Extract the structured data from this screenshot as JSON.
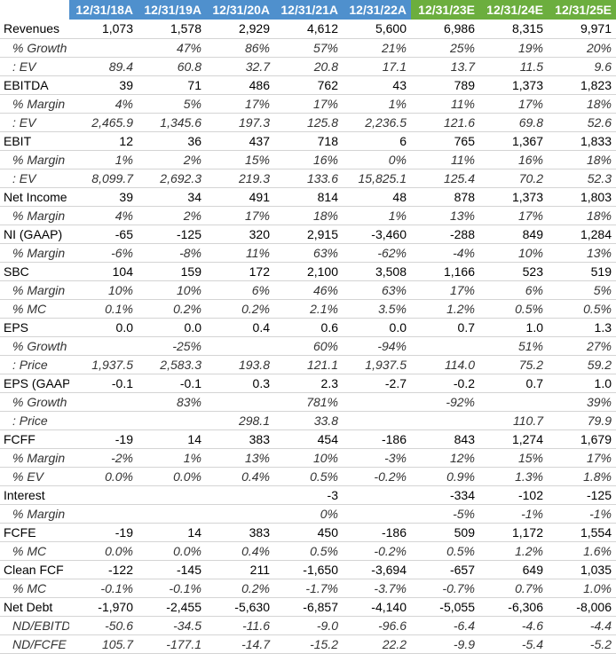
{
  "headers": [
    {
      "text": "12/31/18A",
      "kind": "actual"
    },
    {
      "text": "12/31/19A",
      "kind": "actual"
    },
    {
      "text": "12/31/20A",
      "kind": "actual"
    },
    {
      "text": "12/31/21A",
      "kind": "actual"
    },
    {
      "text": "12/31/22A",
      "kind": "actual"
    },
    {
      "text": "12/31/23E",
      "kind": "est"
    },
    {
      "text": "12/31/24E",
      "kind": "est"
    },
    {
      "text": "12/31/25E",
      "kind": "est"
    }
  ],
  "rows": [
    {
      "label": "Revenues",
      "sub": false,
      "values": [
        "1,073",
        "1,578",
        "2,929",
        "4,612",
        "5,600",
        "6,986",
        "8,315",
        "9,971"
      ]
    },
    {
      "label": "% Growth",
      "sub": true,
      "values": [
        "",
        "47%",
        "86%",
        "57%",
        "21%",
        "25%",
        "19%",
        "20%"
      ]
    },
    {
      "label": ": EV",
      "sub": true,
      "values": [
        "89.4",
        "60.8",
        "32.7",
        "20.8",
        "17.1",
        "13.7",
        "11.5",
        "9.6"
      ]
    },
    {
      "label": "EBITDA",
      "sub": false,
      "values": [
        "39",
        "71",
        "486",
        "762",
        "43",
        "789",
        "1,373",
        "1,823"
      ]
    },
    {
      "label": "% Margin",
      "sub": true,
      "values": [
        "4%",
        "5%",
        "17%",
        "17%",
        "1%",
        "11%",
        "17%",
        "18%"
      ]
    },
    {
      "label": ": EV",
      "sub": true,
      "values": [
        "2,465.9",
        "1,345.6",
        "197.3",
        "125.8",
        "2,236.5",
        "121.6",
        "69.8",
        "52.6"
      ]
    },
    {
      "label": "EBIT",
      "sub": false,
      "values": [
        "12",
        "36",
        "437",
        "718",
        "6",
        "765",
        "1,367",
        "1,833"
      ]
    },
    {
      "label": "% Margin",
      "sub": true,
      "values": [
        "1%",
        "2%",
        "15%",
        "16%",
        "0%",
        "11%",
        "16%",
        "18%"
      ]
    },
    {
      "label": ": EV",
      "sub": true,
      "values": [
        "8,099.7",
        "2,692.3",
        "219.3",
        "133.6",
        "15,825.1",
        "125.4",
        "70.2",
        "52.3"
      ]
    },
    {
      "label": "Net Income",
      "sub": false,
      "values": [
        "39",
        "34",
        "491",
        "814",
        "48",
        "878",
        "1,373",
        "1,803"
      ]
    },
    {
      "label": "% Margin",
      "sub": true,
      "values": [
        "4%",
        "2%",
        "17%",
        "18%",
        "1%",
        "13%",
        "17%",
        "18%"
      ]
    },
    {
      "label": "NI (GAAP)",
      "sub": false,
      "values": [
        "-65",
        "-125",
        "320",
        "2,915",
        "-3,460",
        "-288",
        "849",
        "1,284"
      ]
    },
    {
      "label": "% Margin",
      "sub": true,
      "values": [
        "-6%",
        "-8%",
        "11%",
        "63%",
        "-62%",
        "-4%",
        "10%",
        "13%"
      ]
    },
    {
      "label": "SBC",
      "sub": false,
      "values": [
        "104",
        "159",
        "172",
        "2,100",
        "3,508",
        "1,166",
        "523",
        "519"
      ]
    },
    {
      "label": "% Margin",
      "sub": true,
      "values": [
        "10%",
        "10%",
        "6%",
        "46%",
        "63%",
        "17%",
        "6%",
        "5%"
      ]
    },
    {
      "label": "% MC",
      "sub": true,
      "values": [
        "0.1%",
        "0.2%",
        "0.2%",
        "2.1%",
        "3.5%",
        "1.2%",
        "0.5%",
        "0.5%"
      ]
    },
    {
      "label": "EPS",
      "sub": false,
      "values": [
        "0.0",
        "0.0",
        "0.4",
        "0.6",
        "0.0",
        "0.7",
        "1.0",
        "1.3"
      ]
    },
    {
      "label": "% Growth",
      "sub": true,
      "values": [
        "",
        "-25%",
        "",
        "60%",
        "-94%",
        "",
        "51%",
        "27%"
      ]
    },
    {
      "label": ": Price",
      "sub": true,
      "values": [
        "1,937.5",
        "2,583.3",
        "193.8",
        "121.1",
        "1,937.5",
        "114.0",
        "75.2",
        "59.2"
      ]
    },
    {
      "label": "EPS (GAAP)",
      "sub": false,
      "values": [
        "-0.1",
        "-0.1",
        "0.3",
        "2.3",
        "-2.7",
        "-0.2",
        "0.7",
        "1.0"
      ]
    },
    {
      "label": "% Growth",
      "sub": true,
      "values": [
        "",
        "83%",
        "",
        "781%",
        "",
        "-92%",
        "",
        "39%"
      ]
    },
    {
      "label": ": Price",
      "sub": true,
      "values": [
        "",
        "",
        "298.1",
        "33.8",
        "",
        "",
        "110.7",
        "79.9"
      ]
    },
    {
      "label": "FCFF",
      "sub": false,
      "values": [
        "-19",
        "14",
        "383",
        "454",
        "-186",
        "843",
        "1,274",
        "1,679"
      ]
    },
    {
      "label": "% Margin",
      "sub": true,
      "values": [
        "-2%",
        "1%",
        "13%",
        "10%",
        "-3%",
        "12%",
        "15%",
        "17%"
      ]
    },
    {
      "label": "% EV",
      "sub": true,
      "values": [
        "0.0%",
        "0.0%",
        "0.4%",
        "0.5%",
        "-0.2%",
        "0.9%",
        "1.3%",
        "1.8%"
      ]
    },
    {
      "label": "Interest",
      "sub": false,
      "values": [
        "",
        "",
        "",
        "-3",
        "",
        "-334",
        "-102",
        "-125"
      ]
    },
    {
      "label": "% Margin",
      "sub": true,
      "values": [
        "",
        "",
        "",
        "0%",
        "",
        "-5%",
        "-1%",
        "-1%"
      ]
    },
    {
      "label": "FCFE",
      "sub": false,
      "values": [
        "-19",
        "14",
        "383",
        "450",
        "-186",
        "509",
        "1,172",
        "1,554"
      ]
    },
    {
      "label": "% MC",
      "sub": true,
      "values": [
        "0.0%",
        "0.0%",
        "0.4%",
        "0.5%",
        "-0.2%",
        "0.5%",
        "1.2%",
        "1.6%"
      ]
    },
    {
      "label": "Clean FCF",
      "sub": false,
      "values": [
        "-122",
        "-145",
        "211",
        "-1,650",
        "-3,694",
        "-657",
        "649",
        "1,035"
      ]
    },
    {
      "label": "% MC",
      "sub": true,
      "values": [
        "-0.1%",
        "-0.1%",
        "0.2%",
        "-1.7%",
        "-3.7%",
        "-0.7%",
        "0.7%",
        "1.0%"
      ]
    },
    {
      "label": "Net Debt",
      "sub": false,
      "values": [
        "-1,970",
        "-2,455",
        "-5,630",
        "-6,857",
        "-4,140",
        "-5,055",
        "-6,306",
        "-8,006"
      ]
    },
    {
      "label": "ND/EBITDA",
      "sub": true,
      "values": [
        "-50.6",
        "-34.5",
        "-11.6",
        "-9.0",
        "-96.6",
        "-6.4",
        "-4.6",
        "-4.4"
      ]
    },
    {
      "label": "ND/FCFE",
      "sub": true,
      "values": [
        "105.7",
        "-177.1",
        "-14.7",
        "-15.2",
        "22.2",
        "-9.9",
        "-5.4",
        "-5.2"
      ]
    }
  ]
}
